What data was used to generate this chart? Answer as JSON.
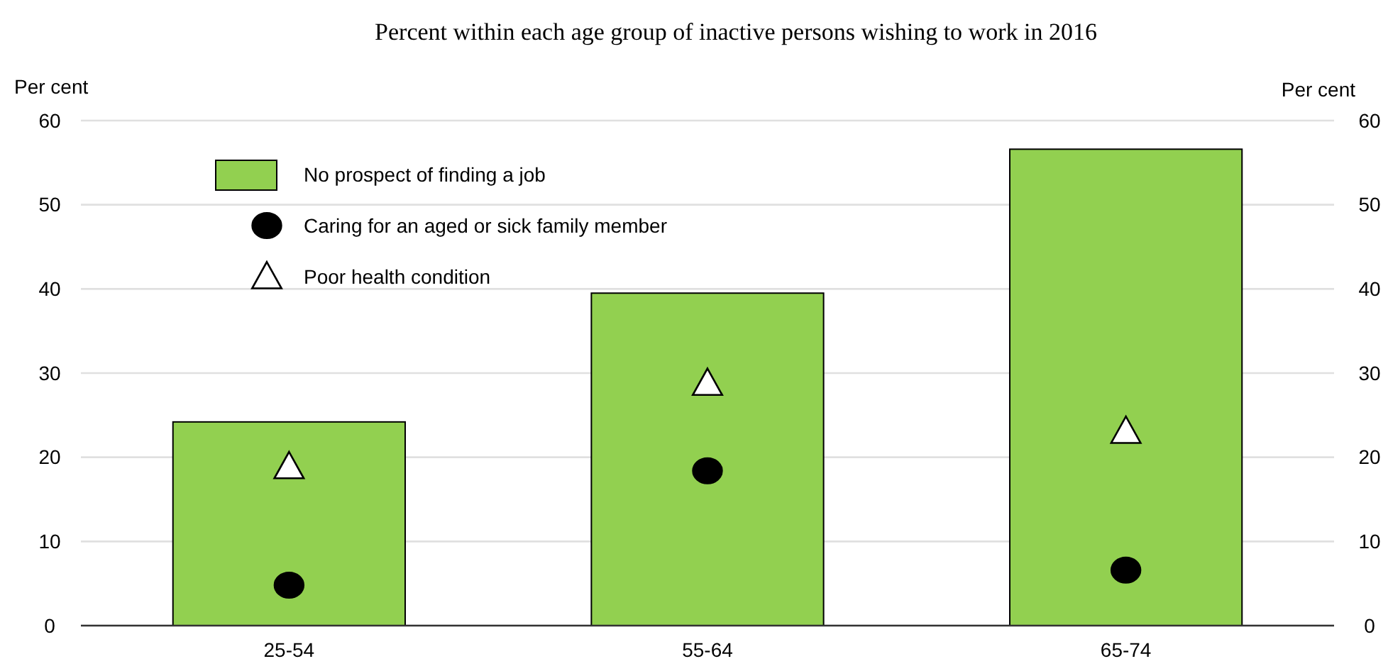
{
  "chart_data": {
    "type": "bar",
    "title": "Percent within each age group of inactive persons wishing to work in 2016",
    "ylabel": "Per cent",
    "y2label": "Per cent",
    "categories": [
      "25-54",
      "55-64",
      "65-74"
    ],
    "series": [
      {
        "name": "No prospect of finding a job",
        "color": "#92d050",
        "values": [
          24.2,
          39.5,
          56.6
        ]
      },
      {
        "name": "Caring for an aged or sick family member",
        "type": "scatter",
        "marker": "circle",
        "color": "#000000",
        "x": [
          "25-54",
          "55-64",
          "65-74"
        ],
        "values": [
          4.8,
          18.4,
          6.6
        ]
      },
      {
        "name": "Poor health condition",
        "type": "scatter",
        "marker": "triangle",
        "color": "#ffffff",
        "x": [
          "25-54",
          "55-64",
          "65-74"
        ],
        "values": [
          18.9,
          28.8,
          23.1
        ]
      }
    ],
    "ylim": [
      0,
      60
    ],
    "yticks": [
      0,
      10,
      20,
      30,
      40,
      50,
      60
    ],
    "y2lim": [
      0,
      60
    ],
    "y2ticks": [
      0,
      10,
      20,
      30,
      40,
      50,
      60
    ],
    "grid": "y",
    "legend": "top left"
  }
}
